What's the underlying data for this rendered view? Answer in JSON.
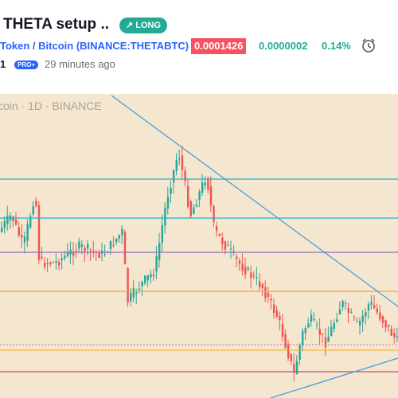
{
  "header": {
    "title": "THETA setup ..",
    "badge": "↗ LONG",
    "pair": "Token / Bitcoin",
    "symbol": "(BINANCE:THETABTC)",
    "price": "0.0001426",
    "change": "0.0000002",
    "change_pct": "0.14%",
    "author": "1",
    "author_badge": "PRO+",
    "time": "29 minutes ago"
  },
  "chart": {
    "watermark": "coin · 1D · BINANCE"
  }
}
